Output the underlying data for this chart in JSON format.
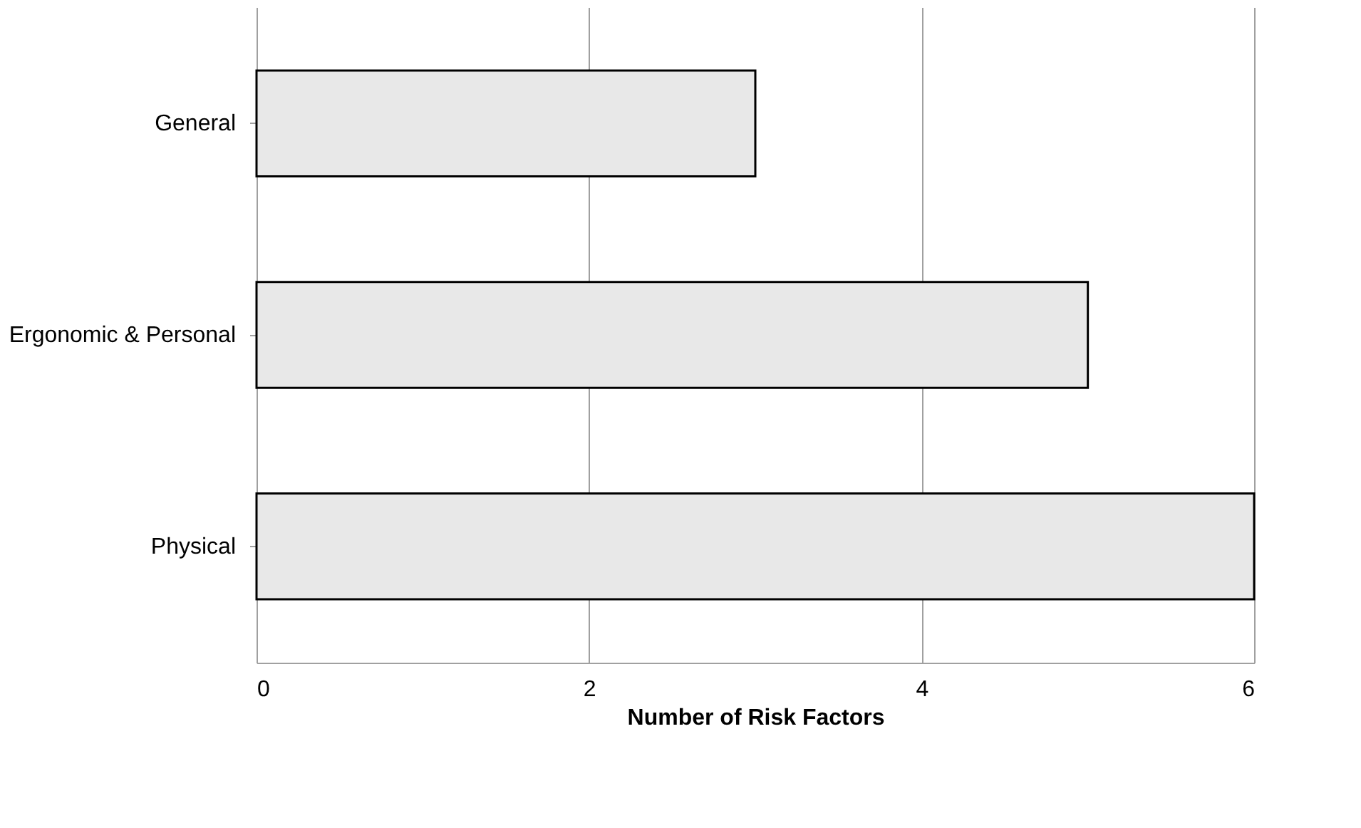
{
  "chart_data": {
    "type": "bar",
    "orientation": "horizontal",
    "xlabel": "Number of Risk Factors",
    "categories": [
      "General",
      "Ergonomic & Personal",
      "Physical"
    ],
    "values": [
      3,
      5,
      6
    ],
    "color": "#e8e8e8",
    "xlim": [
      0,
      6
    ],
    "xticks": [
      0,
      2,
      4,
      6
    ],
    "grid": "x"
  }
}
